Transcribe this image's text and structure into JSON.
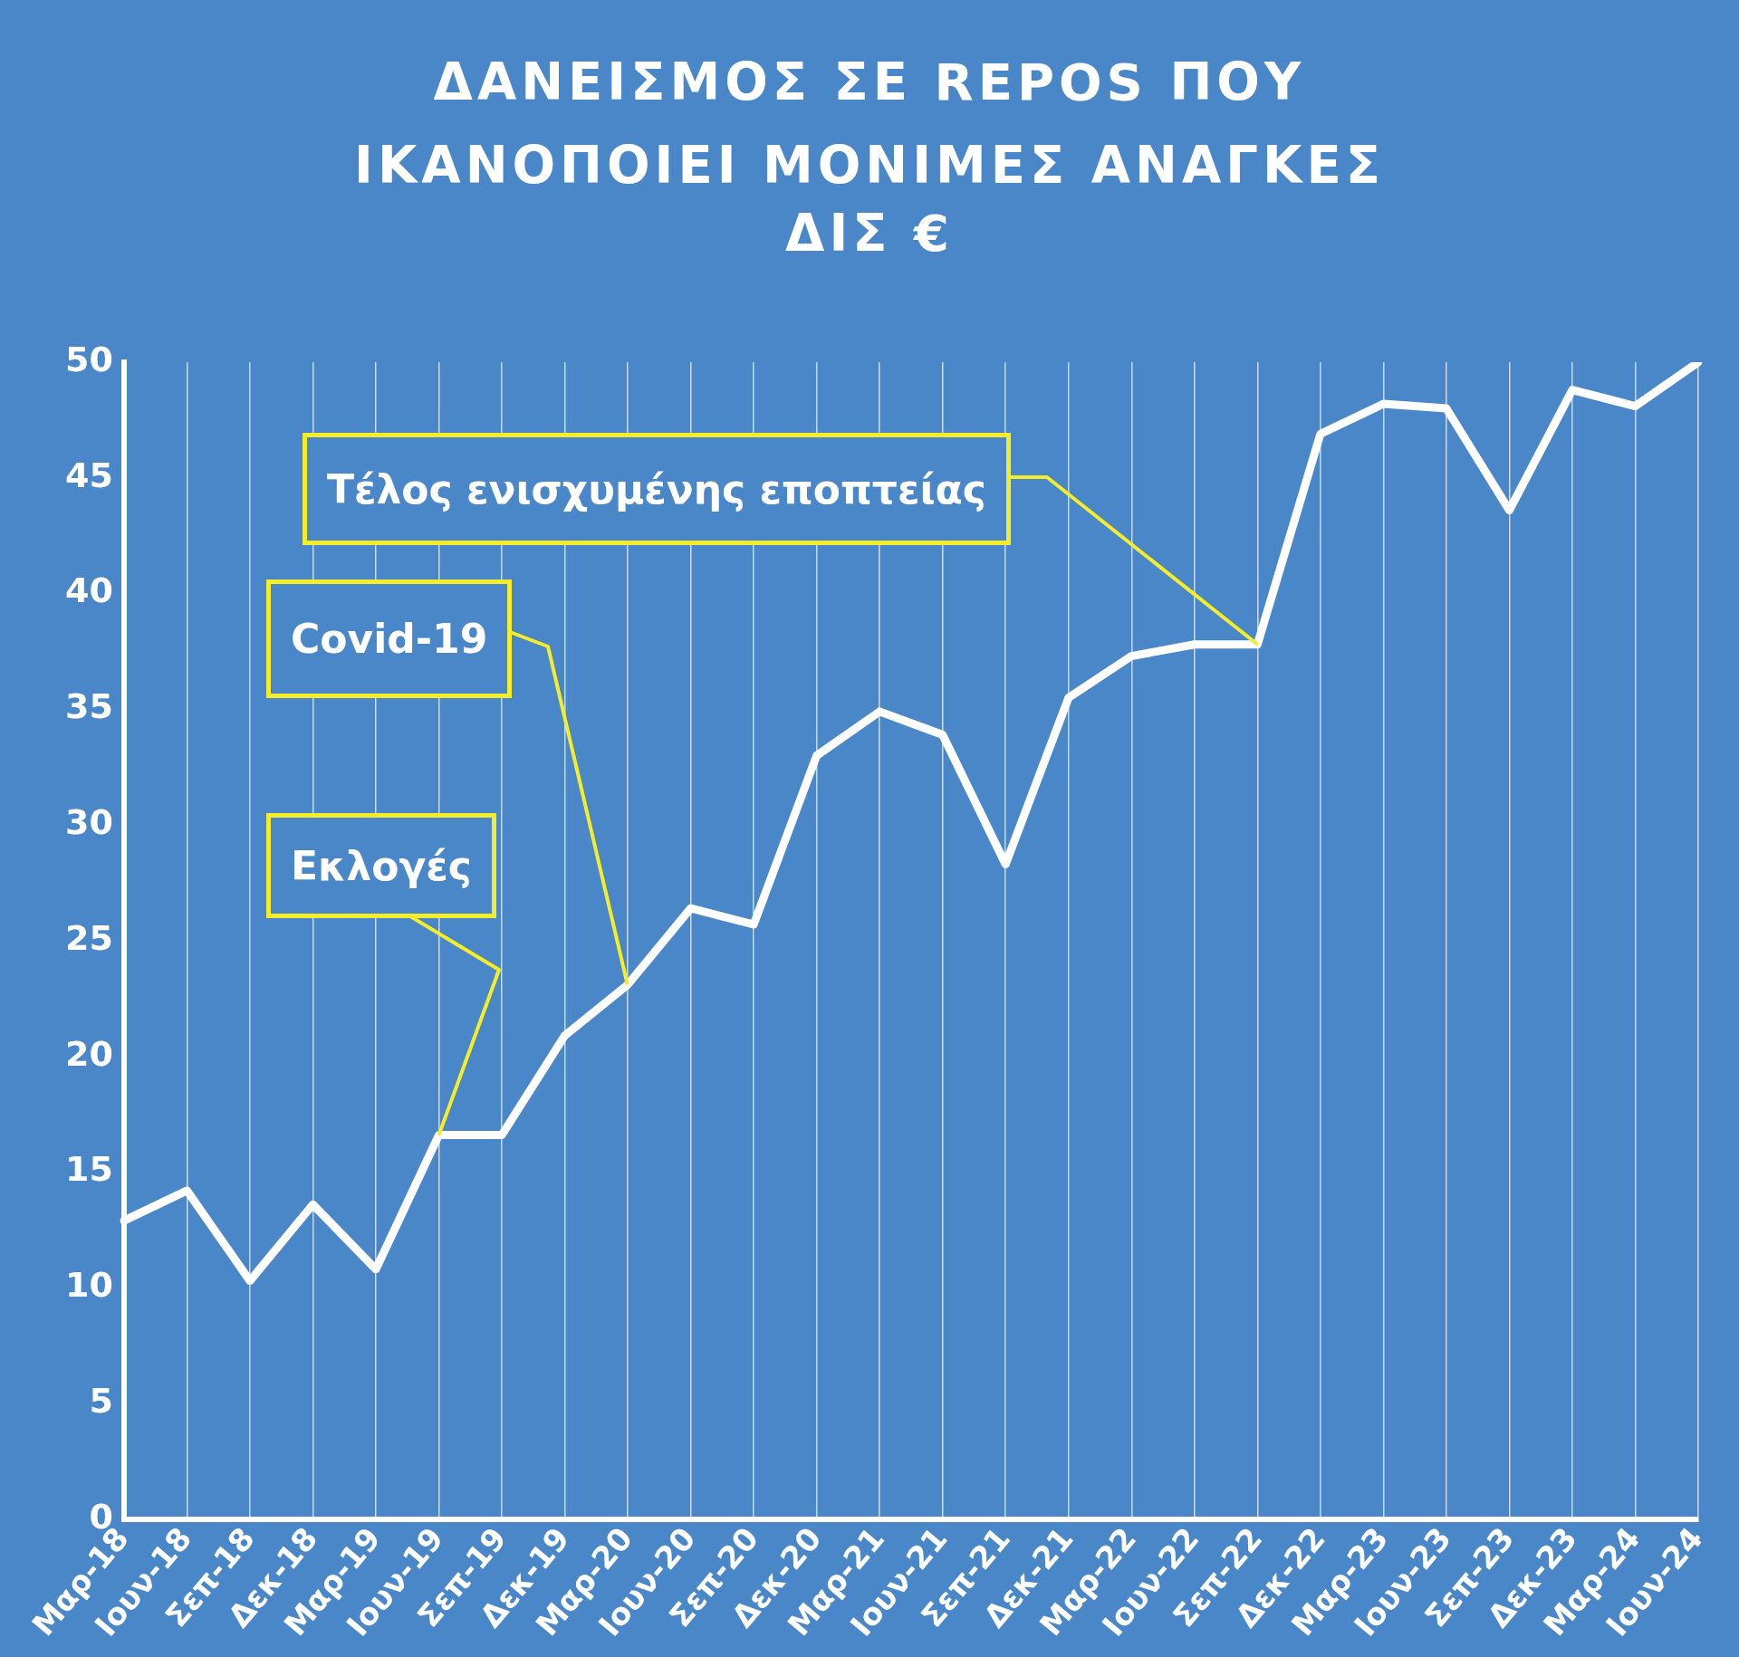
{
  "chart_data": {
    "type": "line",
    "title": "ΔΑΝΕΙΣΜΟΣ ΣΕ REPOS ΠΟΥ ΙΚΑΝΟΠΟΙΕΙ ΜΟΝΙΜΕΣ ΑΝΑΓΚΕΣ",
    "subtitle": "ΔΙΣ €",
    "categories": [
      "Μαρ-18",
      "Ιουν-18",
      "Σεπ-18",
      "Δεκ-18",
      "Μαρ-19",
      "Ιουν-19",
      "Σεπ-19",
      "Δεκ-19",
      "Μαρ-20",
      "Ιουν-20",
      "Σεπ-20",
      "Δεκ-20",
      "Μαρ-21",
      "Ιουν-21",
      "Σεπ-21",
      "Δεκ-21",
      "Μαρ-22",
      "Ιουν-22",
      "Σεπ-22",
      "Δεκ-22",
      "Μαρ-23",
      "Ιουν-23",
      "Σεπ-23",
      "Δεκ-23",
      "Μαρ-24",
      "Ιουν-24"
    ],
    "series": [
      {
        "color": "#ffffff",
        "values": [
          12.9,
          14.2,
          10.3,
          13.6,
          10.8,
          16.6,
          16.6,
          20.9,
          23.1,
          26.4,
          25.7,
          33.0,
          34.9,
          33.9,
          28.3,
          35.5,
          37.3,
          37.8,
          37.8,
          46.9,
          48.2,
          48.0,
          43.6,
          48.8,
          48.1,
          50
        ]
      }
    ],
    "ylim": [
      0,
      50
    ],
    "yticks": [
      0,
      5,
      10,
      15,
      20,
      25,
      30,
      35,
      40,
      45,
      50
    ],
    "grid": "x",
    "legend": false,
    "marker": "none",
    "line_style": "solid",
    "annotations": [
      {
        "text": "Εκλογές",
        "x": "Ιουν-19",
        "y": 16.6
      },
      {
        "text": "Covid-19",
        "x": "Μαρ-20",
        "y": 23.1
      },
      {
        "text": "Τέλος ενισχυμένης εποπτείας",
        "x": "Σεπ-22",
        "y": 37.8
      }
    ]
  }
}
